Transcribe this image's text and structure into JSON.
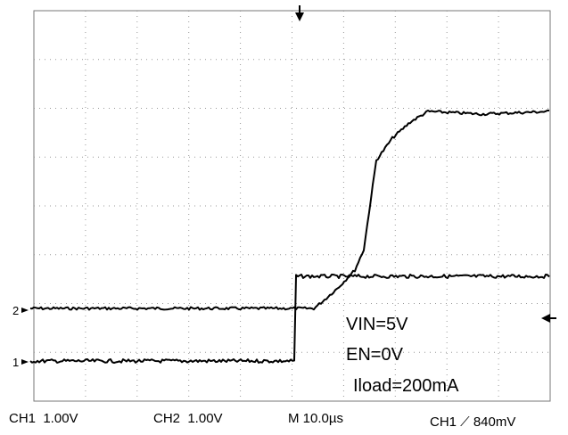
{
  "screen": {
    "markers": {
      "ch2": "2",
      "ch1": "1"
    },
    "annotations": [
      "VIN=5V",
      "EN=0V",
      "Iload=200mA"
    ],
    "status": {
      "ch1_scale": "CH1  1.00V",
      "ch2_scale": "CH2  1.00V",
      "timebase": "M 10.0µs",
      "trigger": "CH1 ⟋ 840mV"
    }
  }
}
